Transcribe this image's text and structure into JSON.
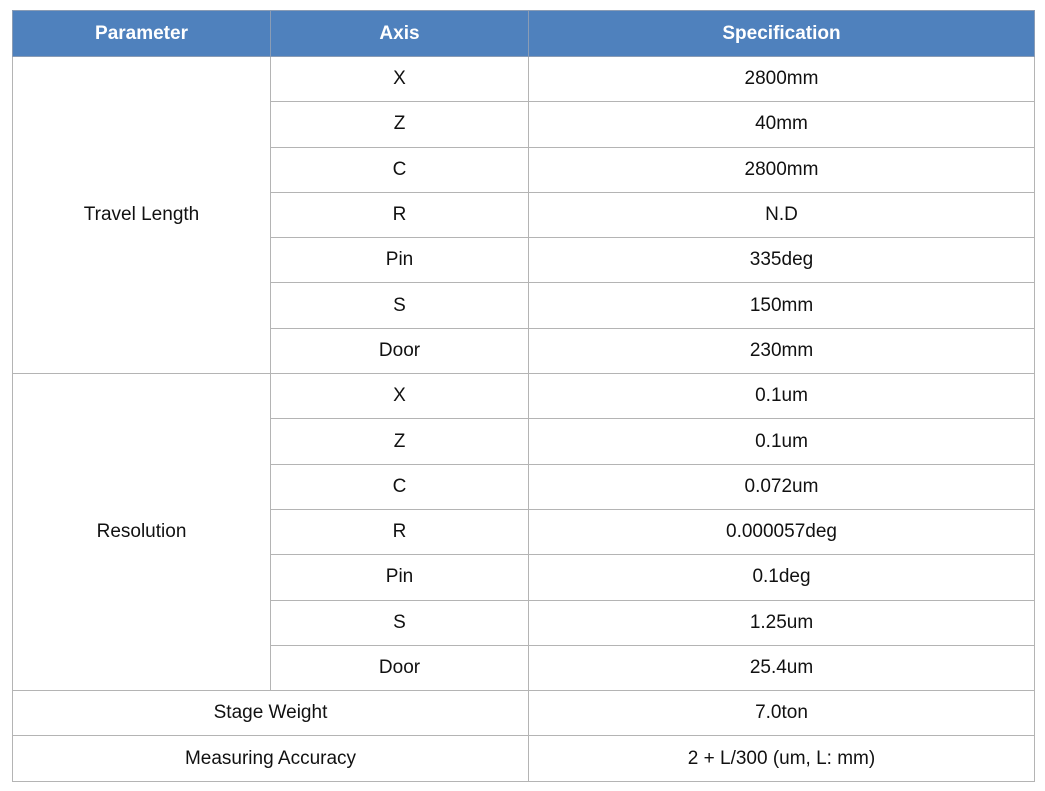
{
  "header": {
    "parameter": "Parameter",
    "axis": "Axis",
    "specification": "Specification"
  },
  "header_color": "#4f81bd",
  "groups": [
    {
      "parameter": "Travel Length",
      "rows": [
        {
          "axis": "X",
          "spec": "2800mm"
        },
        {
          "axis": "Z",
          "spec": "40mm"
        },
        {
          "axis": "C",
          "spec": "2800mm"
        },
        {
          "axis": "R",
          "spec": "N.D"
        },
        {
          "axis": "Pin",
          "spec": "335deg"
        },
        {
          "axis": "S",
          "spec": "150mm"
        },
        {
          "axis": "Door",
          "spec": "230mm"
        }
      ]
    },
    {
      "parameter": "Resolution",
      "rows": [
        {
          "axis": "X",
          "spec": "0.1um"
        },
        {
          "axis": "Z",
          "spec": "0.1um"
        },
        {
          "axis": "C",
          "spec": "0.072um"
        },
        {
          "axis": "R",
          "spec": "0.000057deg"
        },
        {
          "axis": "Pin",
          "spec": "0.1deg"
        },
        {
          "axis": "S",
          "spec": "1.25um"
        },
        {
          "axis": "Door",
          "spec": "25.4um"
        }
      ]
    }
  ],
  "single_rows": [
    {
      "parameter": "Stage Weight",
      "spec": "7.0ton"
    },
    {
      "parameter": "Measuring Accuracy",
      "spec": "2 + L/300 (um, L: mm)"
    }
  ]
}
